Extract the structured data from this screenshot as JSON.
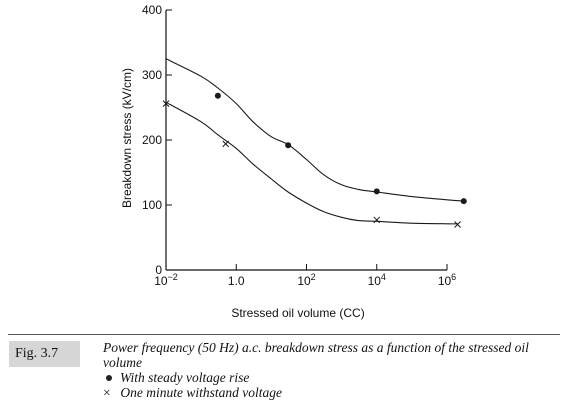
{
  "chart_data": {
    "type": "line",
    "x_scale": "log",
    "xlabel": "Stressed oil volume (CC)",
    "ylabel": "Breakdown stress (kV/cm)",
    "x_ticks": [
      {
        "value": 0.01,
        "base": "10",
        "exp": "−2"
      },
      {
        "value": 1,
        "label": "1.0"
      },
      {
        "value": 100,
        "base": "10",
        "exp": "2"
      },
      {
        "value": 10000,
        "base": "10",
        "exp": "4"
      },
      {
        "value": 1000000,
        "base": "10",
        "exp": "6"
      }
    ],
    "y_ticks": [
      0,
      100,
      200,
      300,
      400
    ],
    "xlim": [
      0.01,
      1000000
    ],
    "ylim": [
      0,
      400
    ],
    "grid": false,
    "series": [
      {
        "name": "With steady voltage rise",
        "marker": "dot",
        "curve": [
          [
            0.01,
            325
          ],
          [
            0.1,
            298
          ],
          [
            0.3,
            280
          ],
          [
            1,
            256
          ],
          [
            3,
            228
          ],
          [
            10,
            205
          ],
          [
            30,
            193
          ],
          [
            100,
            170
          ],
          [
            300,
            147
          ],
          [
            1000,
            131
          ],
          [
            3000,
            124
          ],
          [
            10000,
            120
          ],
          [
            100000,
            113
          ],
          [
            1000000,
            108
          ],
          [
            3000000,
            106
          ]
        ],
        "points": [
          [
            0.3,
            268
          ],
          [
            30,
            192
          ],
          [
            10000,
            121
          ],
          [
            3000000,
            106
          ]
        ]
      },
      {
        "name": "One minute withstand voltage",
        "marker": "cross",
        "curve": [
          [
            0.01,
            258
          ],
          [
            0.1,
            228
          ],
          [
            0.3,
            208
          ],
          [
            1,
            187
          ],
          [
            3,
            163
          ],
          [
            10,
            140
          ],
          [
            30,
            120
          ],
          [
            100,
            103
          ],
          [
            300,
            90
          ],
          [
            1000,
            81
          ],
          [
            3000,
            76
          ],
          [
            10000,
            75
          ],
          [
            100000,
            72
          ],
          [
            1000000,
            71
          ],
          [
            2000000,
            71
          ]
        ],
        "points": [
          [
            0.01,
            256
          ],
          [
            0.5,
            194
          ],
          [
            10000,
            77
          ],
          [
            2000000,
            70
          ]
        ]
      }
    ]
  },
  "caption": {
    "figure_label": "Fig. 3.7",
    "text": "Power frequency (50 Hz) a.c. breakdown stress as a function of the stressed oil volume",
    "legend": [
      {
        "symbol": "dot",
        "label": "With steady voltage rise"
      },
      {
        "symbol": "×",
        "label": "One minute withstand voltage"
      }
    ]
  }
}
